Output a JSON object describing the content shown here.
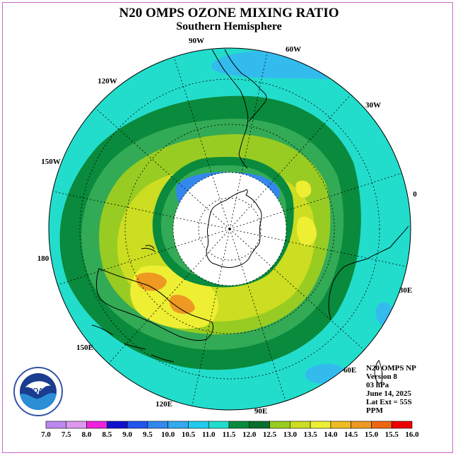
{
  "header": {
    "title": "N20 OMPS OZONE MIXING RATIO",
    "subtitle": "Southern Hemisphere"
  },
  "map": {
    "projection": "south polar stereographic",
    "longitude_labels": [
      "90W",
      "60W",
      "30W",
      "0",
      "30E",
      "60E",
      "90E",
      "120E",
      "150E",
      "180",
      "150W",
      "120W"
    ],
    "colors": {
      "c_10_5_11": "#22ddcc",
      "c_11_5_12": "#0a8a3c",
      "c_11_11_5": "#33aa55",
      "c_12_12_5": "#99cc22",
      "c_12_5_13": "#ccdd22",
      "c_13_13_5": "#eeee33",
      "c_14_14_5": "#ee9922",
      "c_10_10_5": "#33bbee",
      "c_9_5_10": "#3388ee",
      "nodata": "#ffffff"
    }
  },
  "info": {
    "lines": [
      "N20 OMPS NP",
      "Version 8",
      "03 hPa",
      "June 14, 2025",
      "Lat Ext = 55S",
      "PPM"
    ]
  },
  "logo": {
    "text": "NOAA"
  },
  "colorbar": {
    "levels": [
      "7.0",
      "7.5",
      "8.0",
      "8.5",
      "9.0",
      "9.5",
      "10.0",
      "10.5",
      "11.0",
      "11.5",
      "12.0",
      "12.5",
      "13.0",
      "13.5",
      "14.0",
      "14.5",
      "15.0",
      "15.5",
      "16.0"
    ],
    "colors": [
      "#bb88ee",
      "#dd99ee",
      "#ee22dd",
      "#1111cc",
      "#2255ee",
      "#3388ee",
      "#33aaee",
      "#22ccee",
      "#22ddcc",
      "#0a8a3c",
      "#0a6e2e",
      "#99cc22",
      "#ccdd22",
      "#eeee33",
      "#eebb22",
      "#ee9922",
      "#ee6611",
      "#ee0000",
      "#885533"
    ]
  }
}
